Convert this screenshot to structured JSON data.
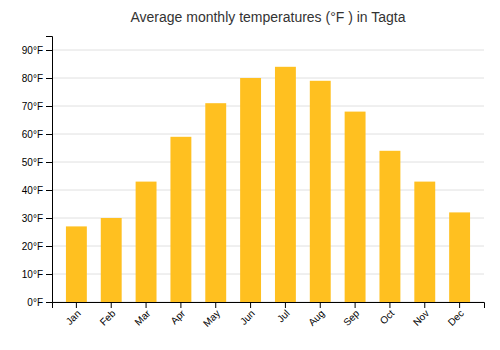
{
  "chart_data": {
    "type": "bar",
    "title": "Average monthly temperatures (°F ) in Tagta",
    "categories": [
      "Jan",
      "Feb",
      "Mar",
      "Apr",
      "May",
      "Jun",
      "Jul",
      "Aug",
      "Sep",
      "Oct",
      "Nov",
      "Dec"
    ],
    "values": [
      27,
      30,
      43,
      59,
      71,
      80,
      84,
      79,
      68,
      54,
      43,
      32
    ],
    "color": "#FFC020",
    "ylim": [
      0,
      95
    ],
    "yticks": [
      {
        "value": 0,
        "label": "0°F"
      },
      {
        "value": 10,
        "label": "10°F"
      },
      {
        "value": 20,
        "label": "20°F"
      },
      {
        "value": 30,
        "label": "30°F"
      },
      {
        "value": 40,
        "label": "40°F"
      },
      {
        "value": 50,
        "label": "50°F"
      },
      {
        "value": 60,
        "label": "60°F"
      },
      {
        "value": 70,
        "label": "70°F"
      },
      {
        "value": 80,
        "label": "80°F"
      },
      {
        "value": 90,
        "label": "90°F"
      }
    ],
    "grid": true
  }
}
